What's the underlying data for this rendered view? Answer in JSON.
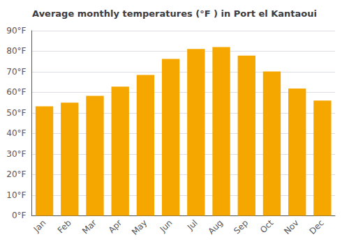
{
  "chart_data": {
    "type": "bar",
    "title": "Average monthly temperatures (°F ) in Port el Kantaoui",
    "categories": [
      "Jan",
      "Feb",
      "Mar",
      "Apr",
      "May",
      "Jun",
      "Jul",
      "Aug",
      "Sep",
      "Oct",
      "Nov",
      "Dec"
    ],
    "values": [
      53.2,
      55.0,
      58.3,
      62.8,
      68.5,
      76.3,
      81.1,
      82.0,
      77.9,
      70.2,
      61.9,
      56.0
    ],
    "color": "#F5A700",
    "ylim": [
      0,
      90
    ],
    "yticks": [
      {
        "value": 0,
        "label": "0°F"
      },
      {
        "value": 10,
        "label": "10°F"
      },
      {
        "value": 20,
        "label": "20°F"
      },
      {
        "value": 30,
        "label": "30°F"
      },
      {
        "value": 40,
        "label": "40°F"
      },
      {
        "value": 50,
        "label": "50°F"
      },
      {
        "value": 60,
        "label": "60°F"
      },
      {
        "value": 70,
        "label": "70°F"
      },
      {
        "value": 80,
        "label": "80°F"
      },
      {
        "value": 90,
        "label": "90°F"
      }
    ],
    "grid": true
  }
}
